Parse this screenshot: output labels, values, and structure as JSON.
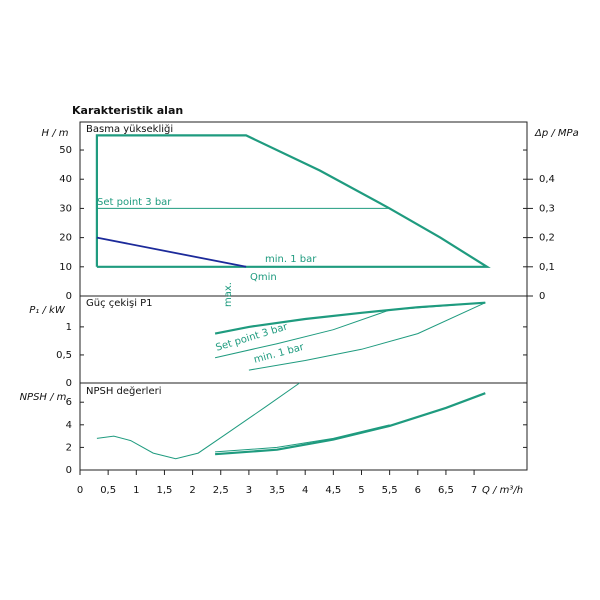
{
  "chart_data": [
    {
      "type": "line",
      "title": "Karakteristik alan",
      "ylabel": "H / m",
      "y2label": "Δp / MPa",
      "annotations": [
        "Basma yüksekliği",
        "Set point 3 bar",
        "min. 1 bar",
        "Qmin"
      ],
      "xlim": [
        0,
        7.94
      ],
      "ylim": [
        0,
        59.6
      ],
      "yticks": [
        0,
        10,
        20,
        30,
        40,
        50
      ],
      "y2lim": [
        0,
        0.596
      ],
      "y2ticks": [
        {
          "value": 0,
          "label": "0"
        },
        {
          "value": 0.1,
          "label": "0,1"
        },
        {
          "value": 0.2,
          "label": "0,2"
        },
        {
          "value": 0.3,
          "label": "0,3"
        },
        {
          "value": 0.4,
          "label": "0,4"
        }
      ],
      "series": [
        {
          "color": "#1f9b7f",
          "width": 2.2,
          "x": [
            0.3,
            0.3,
            2.95,
            4.26,
            5.5,
            6.4,
            7.23,
            0.3
          ],
          "values": [
            10,
            55,
            55,
            43,
            30,
            20,
            10,
            10
          ]
        },
        {
          "color": "#1f9b7f",
          "width": 1,
          "x": [
            0.3,
            5.5
          ],
          "values": [
            30,
            30
          ]
        },
        {
          "color": "#1c2a9a",
          "width": 1.8,
          "x": [
            0.3,
            2.95
          ],
          "values": [
            20,
            10
          ]
        }
      ]
    },
    {
      "type": "line",
      "ylabel": "P₁ / kW",
      "annotations": [
        "Güç çekişi P1",
        "max.",
        "Set point 3 bar",
        "min. 1 bar"
      ],
      "xlim": [
        0,
        7.94
      ],
      "ylim": [
        0,
        1.55
      ],
      "yticks": [
        0,
        {
          "value": 0.5,
          "label": "0,5"
        },
        1
      ],
      "series": [
        {
          "color": "#1f9b7f",
          "width": 2.2,
          "x": [
            2.4,
            3.0,
            4.0,
            5.0,
            6.0,
            7.2
          ],
          "values": [
            0.88,
            1.0,
            1.14,
            1.25,
            1.35,
            1.43
          ]
        },
        {
          "color": "#1f9b7f",
          "width": 1,
          "x": [
            2.4,
            3.5,
            4.5,
            5.5,
            7.2
          ],
          "values": [
            0.45,
            0.7,
            0.95,
            1.3,
            1.43
          ]
        },
        {
          "color": "#1f9b7f",
          "width": 1,
          "x": [
            3.0,
            4.0,
            5.0,
            6.0,
            7.2
          ],
          "values": [
            0.23,
            0.4,
            0.6,
            0.88,
            1.43
          ]
        }
      ]
    },
    {
      "type": "line",
      "ylabel": "NPSH / m",
      "annotations": [
        "NPSH değerleri"
      ],
      "xlim": [
        0,
        7.94
      ],
      "ylim": [
        0,
        7.7
      ],
      "yticks": [
        0,
        2,
        4,
        6
      ],
      "xlabel": "Q / m³/h",
      "xticks": [
        0,
        {
          "value": 0.5,
          "label": "0,5"
        },
        1,
        {
          "value": 1.5,
          "label": "1,5"
        },
        2,
        {
          "value": 2.5,
          "label": "2,5"
        },
        3,
        {
          "value": 3.5,
          "label": "3,5"
        },
        4,
        {
          "value": 4.5,
          "label": "4,5"
        },
        5,
        {
          "value": 5.5,
          "label": "5,5"
        },
        6,
        {
          "value": 6.5,
          "label": "6,5"
        },
        7
      ],
      "series": [
        {
          "color": "#1f9b7f",
          "width": 2.2,
          "x": [
            2.4,
            3.5,
            4.5,
            5.5,
            6.5,
            7.2
          ],
          "values": [
            1.4,
            1.8,
            2.7,
            3.9,
            5.5,
            6.8
          ]
        },
        {
          "color": "#1f9b7f",
          "width": 1,
          "x": [
            2.4,
            3.5,
            4.5,
            5.5
          ],
          "values": [
            1.6,
            2.0,
            2.8,
            4.0
          ]
        },
        {
          "color": "#1f9b7f",
          "width": 1,
          "x": [
            0.3,
            0.6,
            0.9,
            1.3,
            1.7,
            2.1,
            2.6,
            3.3,
            3.9
          ],
          "values": [
            2.8,
            3.0,
            2.6,
            1.5,
            1.0,
            1.5,
            3.2,
            5.6,
            7.7
          ]
        }
      ]
    }
  ]
}
